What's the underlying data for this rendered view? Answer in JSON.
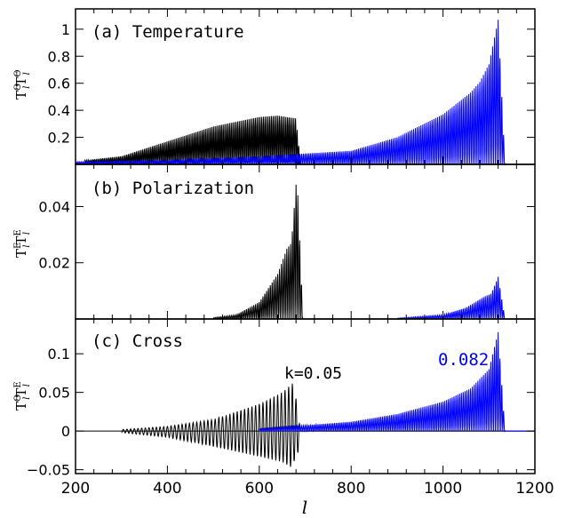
{
  "chart_data": [
    {
      "type": "line",
      "title": "(a) Temperature",
      "ylabel": "T_l^Θ T_l^Θ",
      "ylabel_main": "T",
      "ylabel_sup": "Θ",
      "ylabel_sub": "l",
      "xlim": [
        200,
        1200
      ],
      "ylim": [
        0,
        1.15
      ],
      "yticks": [
        0.2,
        0.4,
        0.6,
        0.8,
        1
      ],
      "yticklabels": [
        "0.2",
        "0.4",
        "0.6",
        "0.8",
        "1"
      ],
      "series": [
        {
          "color": "#000000",
          "peaks": [
            [
              220,
              0.03
            ],
            [
              300,
              0.06
            ],
            [
              400,
              0.17
            ],
            [
              500,
              0.28
            ],
            [
              600,
              0.35
            ],
            [
              640,
              0.36
            ],
            [
              660,
              0.35
            ],
            [
              680,
              0.34
            ],
            [
              690,
              0.0
            ]
          ],
          "period": 7
        },
        {
          "color": "#0000ff",
          "peaks": [
            [
              200,
              0.02
            ],
            [
              400,
              0.03
            ],
            [
              600,
              0.06
            ],
            [
              800,
              0.1
            ],
            [
              900,
              0.2
            ],
            [
              1000,
              0.37
            ],
            [
              1060,
              0.53
            ],
            [
              1080,
              0.61
            ],
            [
              1100,
              0.74
            ],
            [
              1120,
              1.07
            ],
            [
              1135,
              0.0
            ]
          ],
          "period": 8
        }
      ]
    },
    {
      "type": "line",
      "title": "(b) Polarization",
      "ylabel": "T_l^E T_l^E",
      "ylabel_main": "T",
      "ylabel_sup": "E",
      "ylabel_sub": "l",
      "xlim": [
        200,
        1200
      ],
      "ylim": [
        0,
        0.055
      ],
      "yticks": [
        0.02,
        0.04
      ],
      "yticklabels": [
        "0.02",
        "0.04"
      ],
      "series": [
        {
          "color": "#000000",
          "peaks": [
            [
              500,
              0.0005
            ],
            [
              550,
              0.0015
            ],
            [
              600,
              0.006
            ],
            [
              640,
              0.016
            ],
            [
              660,
              0.025
            ],
            [
              670,
              0.027
            ],
            [
              682,
              0.052
            ],
            [
              695,
              0.0
            ]
          ],
          "period": 8
        },
        {
          "color": "#0000ff",
          "peaks": [
            [
              900,
              0.0003
            ],
            [
              1000,
              0.0015
            ],
            [
              1050,
              0.004
            ],
            [
              1090,
              0.008
            ],
            [
              1105,
              0.009
            ],
            [
              1120,
              0.015
            ],
            [
              1135,
              0.0
            ]
          ],
          "period": 8
        }
      ]
    },
    {
      "type": "line",
      "title": "(c) Cross",
      "ylabel": "T_l^Θ T_l^E",
      "ylabel_main": "T",
      "ylabel_sup": "Θ",
      "ylabel_sup2": "E",
      "ylabel_sub": "l",
      "xlabel": "l",
      "xlim": [
        200,
        1200
      ],
      "ylim": [
        -0.055,
        0.145
      ],
      "yticks": [
        -0.05,
        0,
        0.05,
        0.1
      ],
      "yticklabels": [
        "−0.05",
        "0",
        "0.05",
        "0.1"
      ],
      "xticks": [
        200,
        400,
        600,
        800,
        1000,
        1200
      ],
      "xticklabels": [
        "200",
        "400",
        "600",
        "800",
        "1000",
        "1200"
      ],
      "annotations": [
        {
          "text": "k=0.05",
          "color": "#000000",
          "x": 680,
          "y": 0.085
        },
        {
          "text": "0.082",
          "color": "#0000ff",
          "x": 1025,
          "y": 0.105
        }
      ],
      "series": [
        {
          "color": "#000000",
          "peaks": [
            [
              300,
              0.002
            ],
            [
              400,
              0.006
            ],
            [
              500,
              0.015
            ],
            [
              600,
              0.035
            ],
            [
              650,
              0.05
            ],
            [
              675,
              0.063
            ],
            [
              690,
              0.0
            ]
          ],
          "period": 8,
          "troughs": [
            [
              300,
              -0.002
            ],
            [
              400,
              -0.008
            ],
            [
              500,
              -0.02
            ],
            [
              600,
              -0.033
            ],
            [
              650,
              -0.04
            ],
            [
              670,
              -0.047
            ],
            [
              690,
              -0.02
            ],
            [
              700,
              0.0
            ]
          ]
        },
        {
          "color": "#0000ff",
          "peaks": [
            [
              600,
              0.003
            ],
            [
              800,
              0.012
            ],
            [
              900,
              0.022
            ],
            [
              1000,
              0.038
            ],
            [
              1060,
              0.055
            ],
            [
              1100,
              0.08
            ],
            [
              1120,
              0.128
            ],
            [
              1135,
              0.0
            ]
          ],
          "period": 8
        }
      ]
    }
  ]
}
